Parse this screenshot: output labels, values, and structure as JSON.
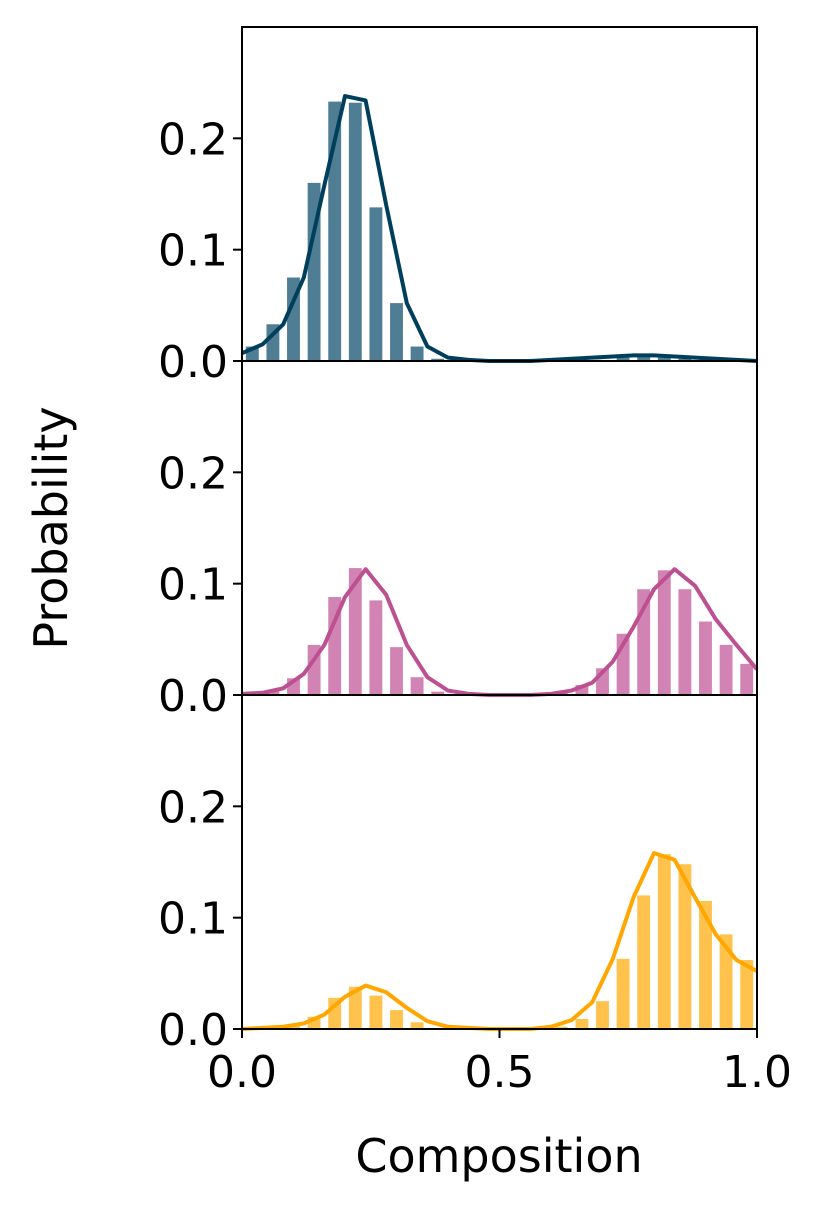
{
  "chart_data": {
    "type": "bar",
    "xlabel": "Composition",
    "ylabel": "Probability",
    "xlim": [
      0,
      1
    ],
    "ylim": [
      0,
      0.3
    ],
    "x_ticks": [
      "0.0",
      "0.5",
      "1.0"
    ],
    "y_ticks": [
      "0.0",
      "0.1",
      "0.2"
    ],
    "x": [
      0.02,
      0.06,
      0.1,
      0.14,
      0.18,
      0.22,
      0.26,
      0.3,
      0.34,
      0.38,
      0.42,
      0.46,
      0.5,
      0.54,
      0.58,
      0.62,
      0.66,
      0.7,
      0.74,
      0.78,
      0.82,
      0.86,
      0.9,
      0.94,
      0.98
    ],
    "panels": [
      {
        "color": "#003f5c",
        "bar_color": "#4f7d94",
        "bars": [
          0.013,
          0.033,
          0.075,
          0.16,
          0.233,
          0.232,
          0.138,
          0.052,
          0.013,
          0.002,
          0,
          0,
          0,
          0,
          0,
          0,
          0,
          0.001,
          0.003,
          0.004,
          0.003,
          0.002,
          0.001,
          0,
          0
        ],
        "curve_x": [
          0,
          0.04,
          0.08,
          0.12,
          0.16,
          0.2,
          0.24,
          0.28,
          0.32,
          0.36,
          0.4,
          0.44,
          0.48,
          0.52,
          0.56,
          0.6,
          0.64,
          0.68,
          0.72,
          0.76,
          0.8,
          0.84,
          0.88,
          0.92,
          0.96,
          1.0
        ],
        "curve_y": [
          0.007,
          0.015,
          0.033,
          0.075,
          0.158,
          0.238,
          0.234,
          0.14,
          0.052,
          0.013,
          0.003,
          0.001,
          0,
          0,
          0,
          0.001,
          0.002,
          0.003,
          0.004,
          0.005,
          0.005,
          0.004,
          0.003,
          0.002,
          0.001,
          0
        ]
      },
      {
        "color": "#bc5090",
        "bar_color": "#d184b4",
        "bars": [
          0,
          0.004,
          0.015,
          0.045,
          0.088,
          0.114,
          0.085,
          0.043,
          0.016,
          0.003,
          0,
          0,
          0,
          0,
          0,
          0.003,
          0.009,
          0.024,
          0.055,
          0.095,
          0.112,
          0.095,
          0.066,
          0.045,
          0.028
        ],
        "curve_x": [
          0,
          0.04,
          0.08,
          0.12,
          0.16,
          0.2,
          0.24,
          0.28,
          0.32,
          0.36,
          0.4,
          0.44,
          0.48,
          0.52,
          0.56,
          0.6,
          0.64,
          0.68,
          0.72,
          0.76,
          0.8,
          0.84,
          0.88,
          0.92,
          0.96,
          1.0
        ],
        "curve_y": [
          0.001,
          0.002,
          0.006,
          0.019,
          0.045,
          0.088,
          0.113,
          0.09,
          0.045,
          0.016,
          0.004,
          0.001,
          0,
          0,
          0,
          0.001,
          0.004,
          0.011,
          0.03,
          0.061,
          0.095,
          0.113,
          0.098,
          0.068,
          0.045,
          0.023
        ]
      },
      {
        "color": "#ffa600",
        "bar_color": "#ffc24d",
        "bars": [
          0,
          0.001,
          0.004,
          0.011,
          0.028,
          0.038,
          0.03,
          0.017,
          0.006,
          0.001,
          0,
          0,
          0,
          0,
          0,
          0.002,
          0.009,
          0.025,
          0.063,
          0.12,
          0.157,
          0.148,
          0.115,
          0.085,
          0.062
        ],
        "curve_x": [
          0,
          0.04,
          0.08,
          0.12,
          0.16,
          0.2,
          0.24,
          0.28,
          0.32,
          0.36,
          0.4,
          0.44,
          0.48,
          0.52,
          0.56,
          0.6,
          0.64,
          0.68,
          0.72,
          0.76,
          0.8,
          0.84,
          0.88,
          0.92,
          0.96,
          1.0
        ],
        "curve_y": [
          0,
          0.001,
          0.002,
          0.005,
          0.013,
          0.029,
          0.039,
          0.033,
          0.019,
          0.007,
          0.002,
          0.001,
          0,
          0,
          0,
          0.002,
          0.008,
          0.024,
          0.063,
          0.118,
          0.158,
          0.152,
          0.118,
          0.085,
          0.062,
          0.052
        ]
      }
    ]
  }
}
